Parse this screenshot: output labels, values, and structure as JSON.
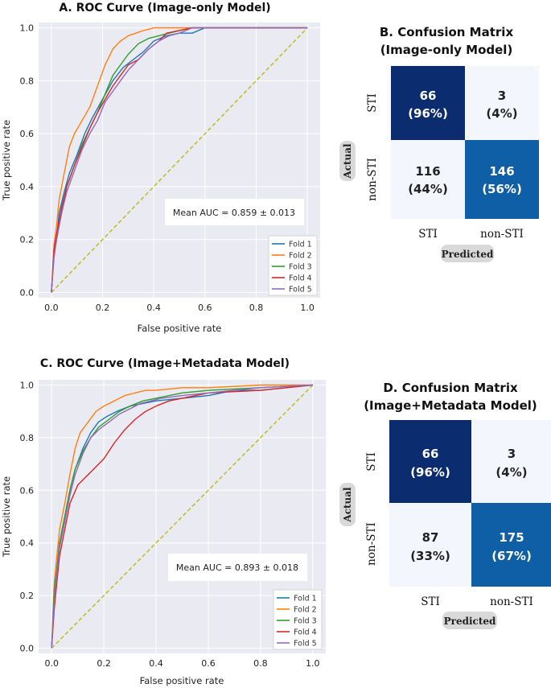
{
  "colors": {
    "fold_colors": [
      "#1f77b4",
      "#ff7f0e",
      "#2ca02c",
      "#d62728",
      "#9467bd"
    ],
    "diagonal": "#bcbd22",
    "plot_bg": "#eaeaf2",
    "grid": "#ffffff",
    "cm_dark": "#0b2c6e",
    "cm_mid": "#0f5fa6",
    "cm_light": "#f3f6fc"
  },
  "chart_data": [
    {
      "id": "A",
      "type": "line",
      "title": "A. ROC Curve (Image-only Model)",
      "xlabel": "False positive rate",
      "ylabel": "True positive rate",
      "xlim": [
        -0.05,
        1.05
      ],
      "ylim": [
        -0.02,
        1.02
      ],
      "xticks": [
        "0.0",
        "0.2",
        "0.4",
        "0.6",
        "0.8",
        "1.0"
      ],
      "yticks": [
        "0.0",
        "0.2",
        "0.4",
        "0.6",
        "0.8",
        "1.0"
      ],
      "annotation": "Mean AUC = 0.859 ± 0.013",
      "legend_position": "bottom-right",
      "series": [
        {
          "name": "Fold 1",
          "x": [
            0,
            0.01,
            0.02,
            0.03,
            0.05,
            0.07,
            0.1,
            0.13,
            0.16,
            0.2,
            0.24,
            0.28,
            0.32,
            0.36,
            0.4,
            0.45,
            0.5,
            0.55,
            0.6,
            1.0
          ],
          "y": [
            0,
            0.15,
            0.2,
            0.3,
            0.38,
            0.45,
            0.52,
            0.6,
            0.66,
            0.73,
            0.8,
            0.85,
            0.88,
            0.91,
            0.95,
            0.97,
            0.98,
            0.98,
            1.0,
            1.0
          ]
        },
        {
          "name": "Fold 2",
          "x": [
            0,
            0.01,
            0.02,
            0.03,
            0.05,
            0.07,
            0.09,
            0.12,
            0.15,
            0.18,
            0.21,
            0.24,
            0.27,
            0.3,
            0.33,
            0.36,
            0.4,
            0.45,
            0.5,
            1.0
          ],
          "y": [
            0,
            0.18,
            0.25,
            0.35,
            0.45,
            0.55,
            0.6,
            0.65,
            0.7,
            0.78,
            0.86,
            0.92,
            0.95,
            0.97,
            0.98,
            0.99,
            1.0,
            1.0,
            1.0,
            1.0
          ]
        },
        {
          "name": "Fold 3",
          "x": [
            0,
            0.01,
            0.02,
            0.04,
            0.06,
            0.09,
            0.12,
            0.15,
            0.18,
            0.21,
            0.24,
            0.27,
            0.3,
            0.34,
            0.38,
            0.42,
            0.46,
            0.5,
            0.55,
            1.0
          ],
          "y": [
            0,
            0.14,
            0.2,
            0.3,
            0.4,
            0.48,
            0.56,
            0.62,
            0.68,
            0.75,
            0.82,
            0.86,
            0.9,
            0.94,
            0.96,
            0.97,
            0.98,
            0.99,
            1.0,
            1.0
          ]
        },
        {
          "name": "Fold 4",
          "x": [
            0,
            0.01,
            0.02,
            0.04,
            0.06,
            0.09,
            0.12,
            0.15,
            0.18,
            0.21,
            0.24,
            0.27,
            0.3,
            0.34,
            0.38,
            0.42,
            0.45,
            0.5,
            0.55,
            1.0
          ],
          "y": [
            0,
            0.16,
            0.22,
            0.32,
            0.4,
            0.48,
            0.55,
            0.62,
            0.68,
            0.73,
            0.78,
            0.82,
            0.86,
            0.88,
            0.92,
            0.95,
            0.98,
            0.99,
            1.0,
            1.0
          ]
        },
        {
          "name": "Fold 5",
          "x": [
            0,
            0.01,
            0.02,
            0.04,
            0.06,
            0.09,
            0.12,
            0.15,
            0.18,
            0.21,
            0.24,
            0.27,
            0.3,
            0.34,
            0.38,
            0.42,
            0.46,
            0.5,
            0.55,
            1.0
          ],
          "y": [
            0,
            0.13,
            0.2,
            0.3,
            0.38,
            0.46,
            0.54,
            0.6,
            0.65,
            0.72,
            0.76,
            0.8,
            0.84,
            0.88,
            0.92,
            0.95,
            0.97,
            0.98,
            1.0,
            1.0
          ]
        }
      ]
    },
    {
      "id": "C",
      "type": "line",
      "title": "C. ROC Curve (Image+Metadata Model)",
      "xlabel": "False positive rate",
      "ylabel": "True positive rate",
      "xlim": [
        -0.05,
        1.05
      ],
      "ylim": [
        -0.02,
        1.02
      ],
      "xticks": [
        "0.0",
        "0.2",
        "0.4",
        "0.6",
        "0.8",
        "1.0"
      ],
      "yticks": [
        "0.0",
        "0.2",
        "0.4",
        "0.6",
        "0.8",
        "1.0"
      ],
      "annotation": "Mean AUC = 0.893 ± 0.018",
      "legend_position": "bottom-right",
      "series": [
        {
          "name": "Fold 1",
          "x": [
            0,
            0.01,
            0.02,
            0.03,
            0.05,
            0.07,
            0.09,
            0.12,
            0.15,
            0.18,
            0.21,
            0.25,
            0.3,
            0.35,
            0.4,
            0.5,
            0.6,
            0.7,
            0.8,
            1.0
          ],
          "y": [
            0,
            0.2,
            0.3,
            0.4,
            0.5,
            0.6,
            0.68,
            0.76,
            0.82,
            0.86,
            0.88,
            0.9,
            0.92,
            0.93,
            0.94,
            0.95,
            0.96,
            0.98,
            0.98,
            1.0
          ]
        },
        {
          "name": "Fold 2",
          "x": [
            0,
            0.01,
            0.02,
            0.03,
            0.05,
            0.07,
            0.09,
            0.11,
            0.14,
            0.17,
            0.2,
            0.24,
            0.28,
            0.32,
            0.36,
            0.4,
            0.5,
            0.6,
            0.8,
            1.0
          ],
          "y": [
            0,
            0.25,
            0.35,
            0.45,
            0.55,
            0.66,
            0.76,
            0.82,
            0.86,
            0.9,
            0.92,
            0.94,
            0.96,
            0.97,
            0.98,
            0.98,
            0.99,
            0.99,
            1.0,
            1.0
          ]
        },
        {
          "name": "Fold 3",
          "x": [
            0,
            0.01,
            0.02,
            0.03,
            0.05,
            0.07,
            0.09,
            0.12,
            0.15,
            0.18,
            0.22,
            0.26,
            0.3,
            0.35,
            0.4,
            0.45,
            0.5,
            0.6,
            0.8,
            1.0
          ],
          "y": [
            0,
            0.22,
            0.3,
            0.4,
            0.5,
            0.6,
            0.68,
            0.75,
            0.8,
            0.84,
            0.87,
            0.9,
            0.92,
            0.94,
            0.95,
            0.96,
            0.97,
            0.98,
            0.99,
            1.0
          ]
        },
        {
          "name": "Fold 4",
          "x": [
            0,
            0.01,
            0.02,
            0.03,
            0.05,
            0.07,
            0.1,
            0.13,
            0.16,
            0.2,
            0.24,
            0.28,
            0.32,
            0.36,
            0.4,
            0.45,
            0.5,
            0.6,
            0.8,
            1.0
          ],
          "y": [
            0,
            0.15,
            0.25,
            0.35,
            0.45,
            0.55,
            0.62,
            0.65,
            0.68,
            0.72,
            0.78,
            0.83,
            0.87,
            0.9,
            0.92,
            0.94,
            0.95,
            0.97,
            0.98,
            1.0
          ]
        },
        {
          "name": "Fold 5",
          "x": [
            0,
            0.01,
            0.02,
            0.03,
            0.05,
            0.07,
            0.09,
            0.12,
            0.15,
            0.18,
            0.22,
            0.26,
            0.3,
            0.34,
            0.38,
            0.42,
            0.5,
            0.6,
            0.8,
            1.0
          ],
          "y": [
            0,
            0.18,
            0.28,
            0.38,
            0.48,
            0.58,
            0.66,
            0.74,
            0.8,
            0.83,
            0.86,
            0.89,
            0.91,
            0.93,
            0.94,
            0.95,
            0.96,
            0.97,
            0.99,
            1.0
          ]
        }
      ]
    },
    {
      "id": "B",
      "type": "heatmap",
      "title_lines": [
        "B. Confusion Matrix",
        "(Image-only Model)"
      ],
      "xlabel": "Predicted",
      "ylabel": "Actual",
      "x_ticks": [
        "STI",
        "non-STI"
      ],
      "y_ticks": [
        "STI",
        "non-STI"
      ],
      "counts": [
        [
          66,
          3
        ],
        [
          116,
          146
        ]
      ],
      "labels": [
        [
          "(96%)",
          "(4%)"
        ],
        [
          "(44%)",
          "(56%)"
        ]
      ]
    },
    {
      "id": "D",
      "type": "heatmap",
      "title_lines": [
        "D. Confusion Matrix",
        "(Image+Metadata Model)"
      ],
      "xlabel": "Predicted",
      "ylabel": "Actual",
      "x_ticks": [
        "STI",
        "non-STI"
      ],
      "y_ticks": [
        "STI",
        "non-STI"
      ],
      "counts": [
        [
          66,
          3
        ],
        [
          87,
          175
        ]
      ],
      "labels": [
        [
          "(96%)",
          "(4%)"
        ],
        [
          "(33%)",
          "(67%)"
        ]
      ]
    }
  ]
}
